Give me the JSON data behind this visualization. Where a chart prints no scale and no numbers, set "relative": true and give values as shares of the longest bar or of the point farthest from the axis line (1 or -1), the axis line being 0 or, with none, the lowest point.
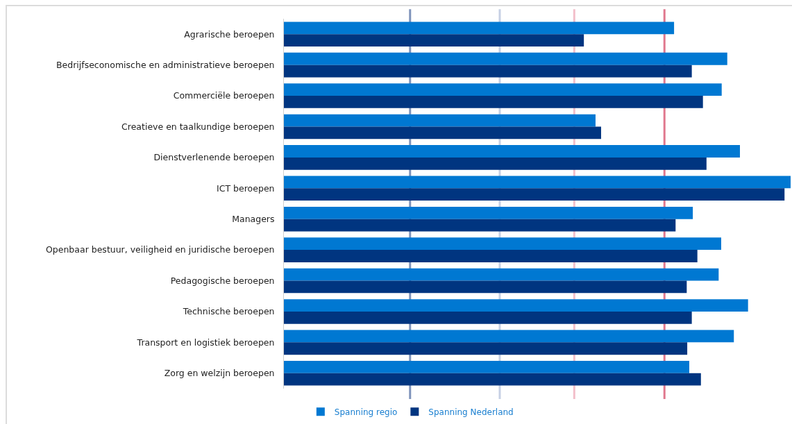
{
  "chart_data": {
    "type": "bar",
    "orientation": "horizontal",
    "relative": true,
    "legend": "bottom",
    "categories": [
      "Agrarische beroepen",
      "Bedrijfseconomische en administratieve beroepen",
      "Commerciële beroepen",
      "Creatieve en taalkundige beroepen",
      "Dienstverlenende beroepen",
      "ICT beroepen",
      "Managers",
      "Openbaar bestuur, veiligheid en juridische beroepen",
      "Pedagogische beroepen",
      "Technische beroepen",
      "Transport en logistiek beroepen",
      "Zorg en welzijn beroepen"
    ],
    "series": [
      {
        "name": "Spanning regio",
        "color": "#0078d2",
        "values": [
          0.77,
          0.875,
          0.864,
          0.615,
          0.9,
          1.0,
          0.807,
          0.863,
          0.858,
          0.916,
          0.888,
          0.8
        ]
      },
      {
        "name": "Spanning Nederland",
        "color": "#003580",
        "values": [
          0.592,
          0.805,
          0.827,
          0.626,
          0.834,
          0.988,
          0.773,
          0.816,
          0.795,
          0.805,
          0.796,
          0.823
        ]
      }
    ],
    "ref_lines": [
      {
        "axis": "x",
        "value": 0.249,
        "color": "#7f93bb"
      },
      {
        "axis": "x",
        "value": 0.426,
        "color": "#c6d0e4"
      },
      {
        "axis": "x",
        "value": 0.573,
        "color": "#f3bfca"
      },
      {
        "axis": "x",
        "value": 0.751,
        "color": "#e0788e"
      }
    ]
  }
}
